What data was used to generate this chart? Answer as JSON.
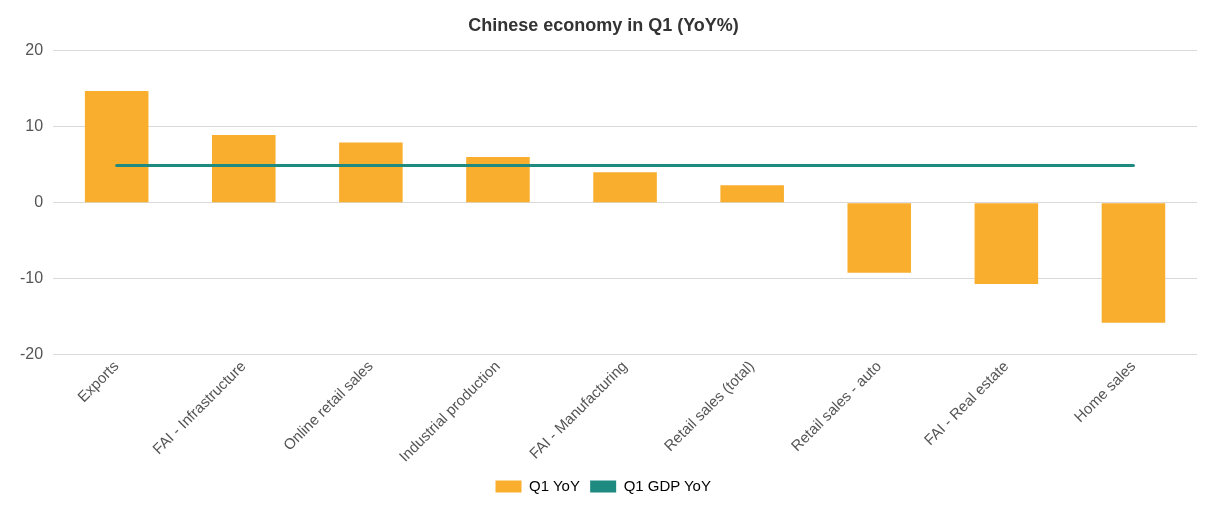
{
  "chart_data": {
    "type": "bar",
    "title": "Chinese economy in Q1 (YoY%)",
    "categories": [
      "Exports",
      "FAI - Infrastructure",
      "Online retail sales",
      "Industrial production",
      "FAI - Manufacturing",
      "Retail sales (total)",
      "Retail sales - auto",
      "FAI - Real estate",
      "Home sales"
    ],
    "series": [
      {
        "name": "Q1 YoY",
        "color": "#f9ae2e",
        "values": [
          14.7,
          8.9,
          7.9,
          6.0,
          4.0,
          2.3,
          -9.2,
          -10.7,
          -15.8
        ]
      },
      {
        "name": "Q1 GDP YoY",
        "type": "line",
        "color": "#1e8a80",
        "values": [
          4.9,
          4.9,
          4.9,
          4.9,
          4.9,
          4.9,
          4.9,
          4.9,
          4.9
        ]
      }
    ],
    "ylim": [
      -20,
      20
    ],
    "yticks": [
      -20,
      -10,
      0,
      10,
      20
    ],
    "grid": "y",
    "legend": "bottom",
    "marker": "none"
  }
}
